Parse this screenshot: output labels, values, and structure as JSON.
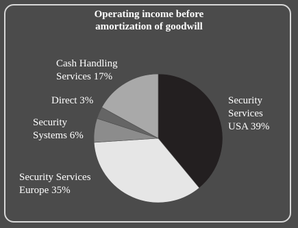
{
  "chart_data": {
    "type": "pie",
    "title": [
      "Operating income before",
      "amortization of goodwill"
    ],
    "slices": [
      {
        "name": [
          "Security",
          "Services",
          "USA 39%"
        ],
        "value": 39,
        "color": "#231f20"
      },
      {
        "name": [
          "Security Services",
          "Europe 35%"
        ],
        "value": 35,
        "color": "#e6e6e6"
      },
      {
        "name": [
          "Security",
          "Systems 6%"
        ],
        "value": 6,
        "color": "#8c8c8c"
      },
      {
        "name": [
          "Direct 3%"
        ],
        "value": 3,
        "color": "#656565"
      },
      {
        "name": [
          "Cash Handling",
          "Services 17%"
        ],
        "value": 17,
        "color": "#a9a9a9"
      }
    ],
    "start_angle_deg": 0,
    "direction": "clockwise",
    "legend": "none",
    "background": "#4b4b4b",
    "border_color": "#d8d8d8"
  }
}
